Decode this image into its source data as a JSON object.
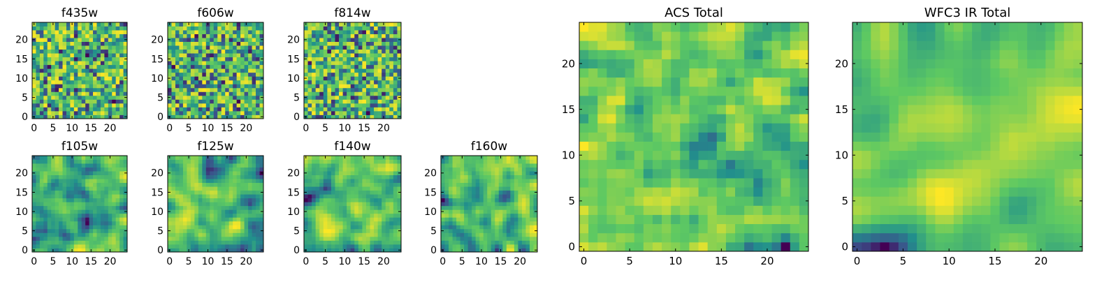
{
  "chart_data": [
    {
      "type": "heatmap",
      "title": "f435w",
      "x_ticks": [
        "0",
        "5",
        "10",
        "15",
        "20"
      ],
      "y_ticks": [
        "0",
        "5",
        "10",
        "15",
        "20"
      ],
      "grid_size": 25,
      "colormap": "viridis",
      "seed": 11,
      "smoothness": 0.1
    },
    {
      "type": "heatmap",
      "title": "f606w",
      "x_ticks": [
        "0",
        "5",
        "10",
        "15",
        "20"
      ],
      "y_ticks": [
        "0",
        "5",
        "10",
        "15",
        "20"
      ],
      "grid_size": 25,
      "colormap": "viridis",
      "seed": 23,
      "smoothness": 0.1
    },
    {
      "type": "heatmap",
      "title": "f814w",
      "x_ticks": [
        "0",
        "5",
        "10",
        "15",
        "20"
      ],
      "y_ticks": [
        "0",
        "5",
        "10",
        "15",
        "20"
      ],
      "grid_size": 25,
      "colormap": "viridis",
      "seed": 37,
      "smoothness": 0.1
    },
    {
      "type": "heatmap",
      "title": "f105w",
      "x_ticks": [
        "0",
        "5",
        "10",
        "15",
        "20"
      ],
      "y_ticks": [
        "0",
        "5",
        "10",
        "15",
        "20"
      ],
      "grid_size": 25,
      "colormap": "viridis",
      "seed": 41,
      "smoothness": 0.6
    },
    {
      "type": "heatmap",
      "title": "f125w",
      "x_ticks": [
        "0",
        "5",
        "10",
        "15",
        "20"
      ],
      "y_ticks": [
        "0",
        "5",
        "10",
        "15",
        "20"
      ],
      "grid_size": 25,
      "colormap": "viridis",
      "seed": 53,
      "smoothness": 0.6
    },
    {
      "type": "heatmap",
      "title": "f140w",
      "x_ticks": [
        "0",
        "5",
        "10",
        "15",
        "20"
      ],
      "y_ticks": [
        "0",
        "5",
        "10",
        "15",
        "20"
      ],
      "grid_size": 25,
      "colormap": "viridis",
      "seed": 67,
      "smoothness": 0.6
    },
    {
      "type": "heatmap",
      "title": "f160w",
      "x_ticks": [
        "0",
        "5",
        "10",
        "15",
        "20"
      ],
      "y_ticks": [
        "0",
        "5",
        "10",
        "15",
        "20"
      ],
      "grid_size": 25,
      "colormap": "viridis",
      "seed": 79,
      "smoothness": 0.6
    },
    {
      "type": "heatmap",
      "title": "ACS Total",
      "x_ticks": [
        "0",
        "5",
        "10",
        "15",
        "20"
      ],
      "y_ticks": [
        "0",
        "5",
        "10",
        "15",
        "20"
      ],
      "grid_size": 25,
      "colormap": "viridis",
      "seed": 83,
      "smoothness": 0.3
    },
    {
      "type": "heatmap",
      "title": "WFC3 IR Total",
      "x_ticks": [
        "0",
        "5",
        "10",
        "15",
        "20"
      ],
      "y_ticks": [
        "0",
        "5",
        "10",
        "15",
        "20"
      ],
      "grid_size": 25,
      "colormap": "viridis",
      "seed": 97,
      "smoothness": 0.7
    }
  ],
  "colors": {
    "viridis": [
      "#440154",
      "#3b528b",
      "#21918c",
      "#5ec962",
      "#fde725"
    ],
    "frame": "#000000"
  }
}
